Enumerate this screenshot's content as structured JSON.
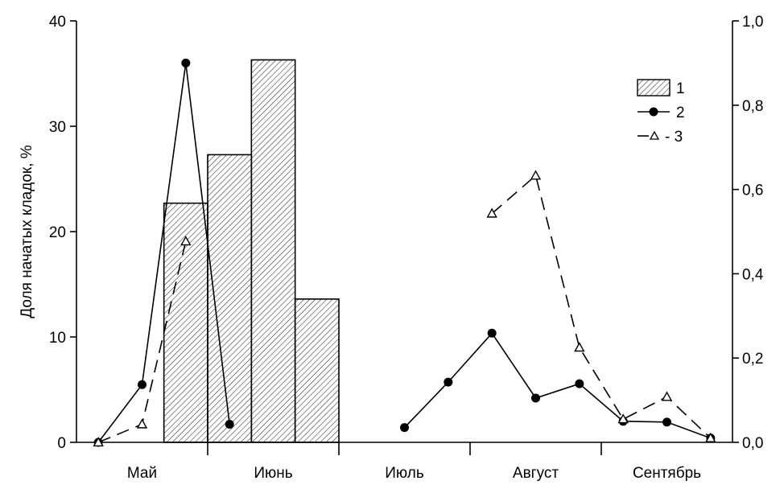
{
  "chart_data": {
    "type": "bar+line",
    "ylabel": "Доля начатых кладок, %",
    "xlabel": "",
    "x_categories": [
      "Май",
      "Июнь",
      "Июль",
      "Август",
      "Сентябрь"
    ],
    "y_left": {
      "lim": [
        0,
        40
      ],
      "ticks": [
        "0",
        "10",
        "20",
        "30",
        "40"
      ],
      "tick_values": [
        0,
        10,
        20,
        30,
        40
      ]
    },
    "y_right": {
      "lim": [
        0,
        1.0
      ],
      "ticks": [
        "0,0",
        "0,2",
        "0,4",
        "0,6",
        "0,8",
        "1,0"
      ],
      "tick_values": [
        0,
        0.2,
        0.4,
        0.6,
        0.8,
        1.0
      ]
    },
    "grid": false,
    "legend": {
      "position": "top-right",
      "entries": [
        {
          "label": "1",
          "kind": "bar"
        },
        {
          "label": "2",
          "kind": "line-dot"
        },
        {
          "label": "- 3",
          "kind": "line-triangle-dashed"
        }
      ]
    },
    "bars": {
      "name": "1",
      "axis": "left",
      "x": [
        2.5,
        3.5,
        4.5,
        5.5
      ],
      "values": [
        22.7,
        27.3,
        36.3,
        13.6
      ]
    },
    "series": [
      {
        "name": "2",
        "axis": "right",
        "style": "solid-dot",
        "segments": [
          {
            "x": [
              0.5,
              1.5,
              2.5,
              3.5
            ],
            "y": [
              0.0,
              0.137,
              0.9,
              0.043
            ]
          },
          {
            "x": [
              7.5,
              8.5,
              9.5,
              10.5,
              11.5,
              12.5,
              13.5,
              14.5
            ],
            "y": [
              0.035,
              0.143,
              0.259,
              0.105,
              0.139,
              0.05,
              0.048,
              0.01
            ]
          }
        ]
      },
      {
        "name": "3",
        "axis": "right",
        "style": "dashed-triangle",
        "segments": [
          {
            "x": [
              0.5,
              1.5,
              2.5
            ],
            "y": [
              0.0,
              0.043,
              0.477
            ]
          },
          {
            "x": [
              9.5,
              10.5,
              11.5,
              12.5,
              13.5,
              14.5
            ],
            "y": [
              0.543,
              0.633,
              0.225,
              0.055,
              0.108,
              0.01
            ]
          }
        ]
      }
    ]
  }
}
